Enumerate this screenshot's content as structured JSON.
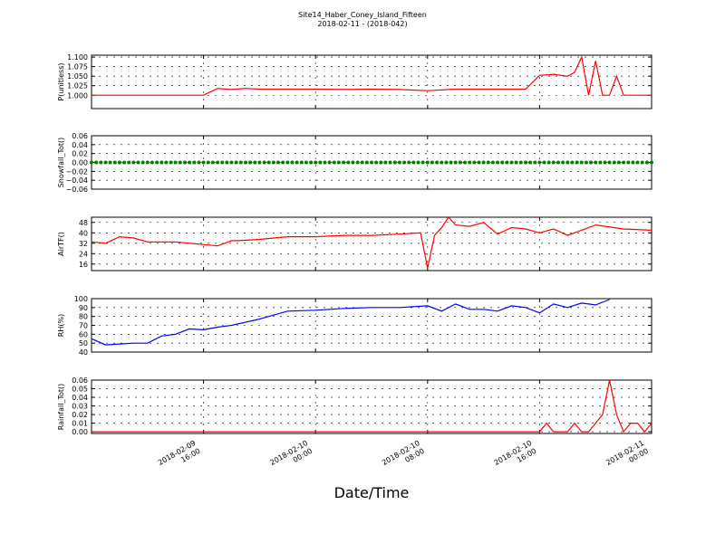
{
  "figure": {
    "title_line1": "Site14_Haber_Coney_Island_Fifteen",
    "title_line2": "2018-02-11 - (2018-042)",
    "xlabel": "Date/Time",
    "x_ticks": [
      {
        "l1": "2018-02-09",
        "l2": "16:00"
      },
      {
        "l1": "2018-02-10",
        "l2": "00:00"
      },
      {
        "l1": "2018-02-10",
        "l2": "08:00"
      },
      {
        "l1": "2018-02-10",
        "l2": "16:00"
      },
      {
        "l1": "2018-02-11",
        "l2": "00:00"
      }
    ]
  },
  "chart_data": [
    {
      "type": "line",
      "ylabel": "P(unitless)",
      "ylim": [
        0.965,
        1.105
      ],
      "yticks": [
        "1.000",
        "1.025",
        "1.050",
        "1.075",
        "1.100"
      ],
      "ytick_values": [
        1.0,
        1.025,
        1.05,
        1.075,
        1.1
      ],
      "grid": true,
      "color": "#ff0000",
      "x": [
        "2018-02-09 08:00",
        "2018-02-09 10:00",
        "2018-02-09 12:00",
        "2018-02-09 14:00",
        "2018-02-09 16:00",
        "2018-02-09 17:00",
        "2018-02-09 18:00",
        "2018-02-09 19:00",
        "2018-02-09 20:00",
        "2018-02-09 22:00",
        "2018-02-10 00:00",
        "2018-02-10 02:00",
        "2018-02-10 04:00",
        "2018-02-10 06:00",
        "2018-02-10 08:00",
        "2018-02-10 10:00",
        "2018-02-10 12:00",
        "2018-02-10 14:00",
        "2018-02-10 15:00",
        "2018-02-10 16:00",
        "2018-02-10 17:00",
        "2018-02-10 18:00",
        "2018-02-10 18:30",
        "2018-02-10 19:00",
        "2018-02-10 19:30",
        "2018-02-10 20:00",
        "2018-02-10 20:30",
        "2018-02-10 21:00",
        "2018-02-10 21:30",
        "2018-02-10 22:00",
        "2018-02-10 22:30",
        "2018-02-10 23:00",
        "2018-02-10 23:30",
        "2018-02-11 00:00"
      ],
      "values": [
        1.0,
        1.0,
        1.0,
        1.0,
        1.0,
        1.018,
        1.015,
        1.018,
        1.016,
        1.016,
        1.016,
        1.015,
        1.016,
        1.015,
        1.012,
        1.016,
        1.016,
        1.016,
        1.016,
        1.052,
        1.055,
        1.05,
        1.06,
        1.1,
        1.0,
        1.09,
        1.0,
        1.0,
        1.05,
        1.0,
        1.0,
        1.0,
        1.0,
        1.0
      ]
    },
    {
      "type": "scatter",
      "ylabel": "Snowfall_Tot()",
      "ylim": [
        -0.06,
        0.06
      ],
      "yticks": [
        "−0.06",
        "−0.04",
        "−0.02",
        "0.00",
        "0.02",
        "0.04",
        "0.06"
      ],
      "ytick_values": [
        -0.06,
        -0.04,
        -0.02,
        0.0,
        0.02,
        0.04,
        0.06
      ],
      "grid": true,
      "color": "#008000",
      "x_range": [
        "2018-02-09 08:00",
        "2018-02-11 00:00"
      ],
      "constant_value": 0.0
    },
    {
      "type": "line",
      "ylabel": "AirTF()",
      "ylim": [
        11,
        52
      ],
      "yticks": [
        "16",
        "24",
        "32",
        "40",
        "48"
      ],
      "ytick_values": [
        16,
        24,
        32,
        40,
        48
      ],
      "grid": true,
      "color": "#ff0000",
      "x": [
        "2018-02-09 08:00",
        "2018-02-09 09:00",
        "2018-02-09 10:00",
        "2018-02-09 11:00",
        "2018-02-09 12:00",
        "2018-02-09 13:00",
        "2018-02-09 14:00",
        "2018-02-09 16:00",
        "2018-02-09 17:00",
        "2018-02-09 18:00",
        "2018-02-09 18:30",
        "2018-02-09 20:00",
        "2018-02-09 22:00",
        "2018-02-10 00:00",
        "2018-02-10 02:00",
        "2018-02-10 04:00",
        "2018-02-10 06:00",
        "2018-02-10 07:30",
        "2018-02-10 08:00",
        "2018-02-10 08:30",
        "2018-02-10 09:00",
        "2018-02-10 09:30",
        "2018-02-10 10:00",
        "2018-02-10 11:00",
        "2018-02-10 12:00",
        "2018-02-10 13:00",
        "2018-02-10 14:00",
        "2018-02-10 15:00",
        "2018-02-10 16:00",
        "2018-02-10 17:00",
        "2018-02-10 18:00",
        "2018-02-10 20:00",
        "2018-02-10 22:00",
        "2018-02-11 00:00"
      ],
      "values": [
        33,
        32,
        37,
        36,
        33,
        33,
        33,
        31,
        30,
        34,
        34,
        35,
        37,
        37,
        38,
        38,
        39,
        40,
        13,
        38,
        44,
        52,
        46,
        45,
        48,
        39,
        44,
        43,
        40,
        43,
        38,
        46,
        43,
        42
      ]
    },
    {
      "type": "line",
      "ylabel": "RH(%)",
      "ylim": [
        40,
        100
      ],
      "yticks": [
        "40",
        "50",
        "60",
        "70",
        "80",
        "90",
        "100"
      ],
      "ytick_values": [
        40,
        50,
        60,
        70,
        80,
        90,
        100
      ],
      "grid": true,
      "color": "#0000ff",
      "x": [
        "2018-02-09 08:00",
        "2018-02-09 09:00",
        "2018-02-09 10:00",
        "2018-02-09 11:00",
        "2018-02-09 12:00",
        "2018-02-09 13:00",
        "2018-02-09 14:00",
        "2018-02-09 15:00",
        "2018-02-09 16:00",
        "2018-02-09 17:00",
        "2018-02-09 18:00",
        "2018-02-09 20:00",
        "2018-02-09 22:00",
        "2018-02-10 00:00",
        "2018-02-10 02:00",
        "2018-02-10 04:00",
        "2018-02-10 06:00",
        "2018-02-10 08:00",
        "2018-02-10 09:00",
        "2018-02-10 10:00",
        "2018-02-10 11:00",
        "2018-02-10 12:00",
        "2018-02-10 13:00",
        "2018-02-10 14:00",
        "2018-02-10 15:00",
        "2018-02-10 16:00",
        "2018-02-10 17:00",
        "2018-02-10 18:00",
        "2018-02-10 19:00",
        "2018-02-10 20:00",
        "2018-02-10 21:00"
      ],
      "values": [
        55,
        48,
        49,
        50,
        50,
        58,
        60,
        66,
        65,
        68,
        70,
        77,
        86,
        87,
        89,
        90,
        90,
        92,
        86,
        94,
        88,
        88,
        86,
        92,
        90,
        84,
        94,
        90,
        95,
        93,
        99
      ]
    },
    {
      "type": "line",
      "ylabel": "Rainfall_Tot()",
      "ylim": [
        -0.002,
        0.06
      ],
      "yticks": [
        "0.00",
        "0.01",
        "0.02",
        "0.03",
        "0.04",
        "0.05",
        "0.06"
      ],
      "ytick_values": [
        0.0,
        0.01,
        0.02,
        0.03,
        0.04,
        0.05,
        0.06
      ],
      "grid": true,
      "color": "#ff0000",
      "x": [
        "2018-02-09 08:00",
        "2018-02-10 16:00",
        "2018-02-10 16:30",
        "2018-02-10 17:00",
        "2018-02-10 18:00",
        "2018-02-10 18:30",
        "2018-02-10 19:00",
        "2018-02-10 19:30",
        "2018-02-10 20:00",
        "2018-02-10 20:30",
        "2018-02-10 21:00",
        "2018-02-10 21:30",
        "2018-02-10 22:00",
        "2018-02-10 22:30",
        "2018-02-10 23:00",
        "2018-02-10 23:30",
        "2018-02-11 00:00"
      ],
      "values": [
        0.0,
        0.0,
        0.01,
        0.0,
        0.0,
        0.01,
        0.0,
        0.0,
        0.01,
        0.02,
        0.06,
        0.02,
        0.0,
        0.01,
        0.01,
        0.0,
        0.01
      ]
    }
  ]
}
